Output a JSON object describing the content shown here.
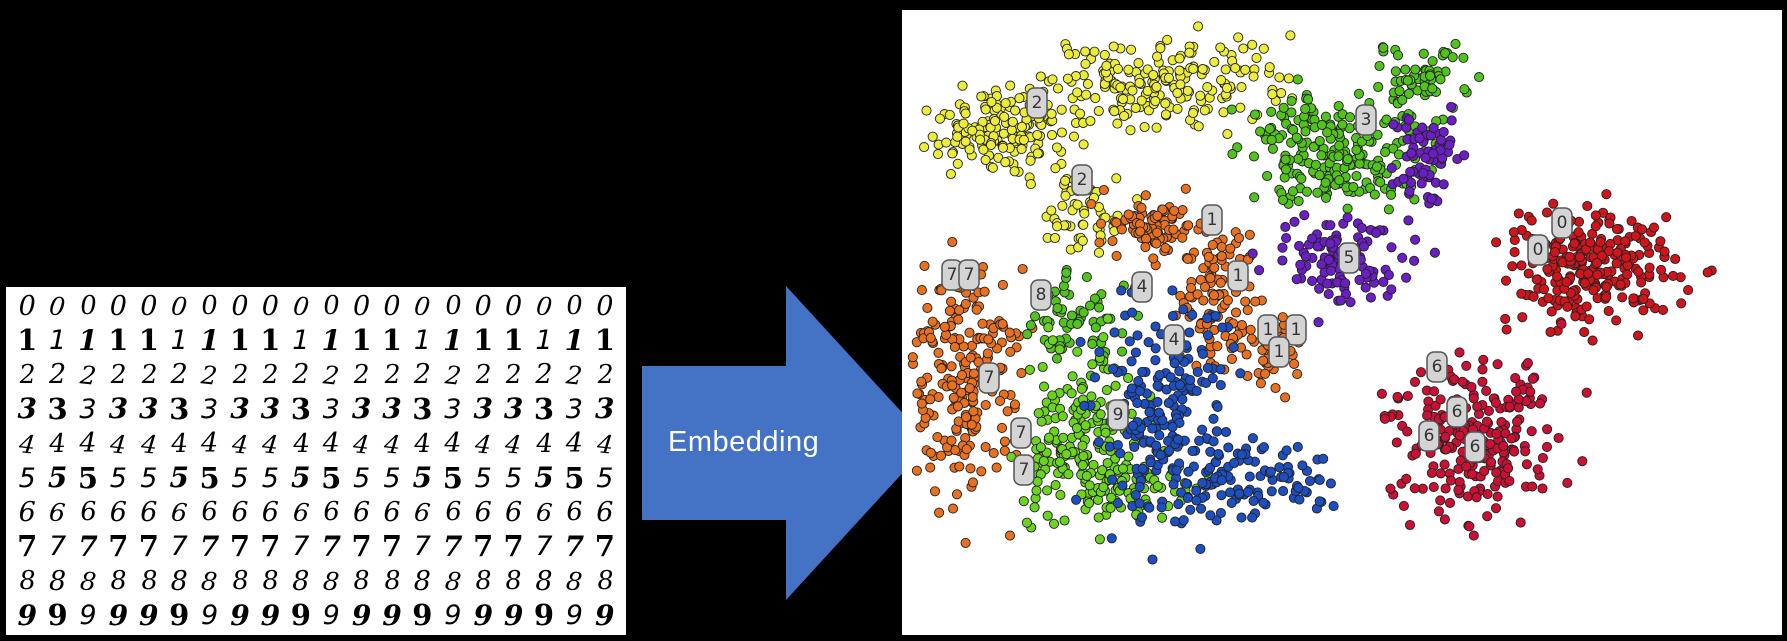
{
  "digit_grid": {
    "rows": [
      "0",
      "1",
      "2",
      "3",
      "4",
      "5",
      "6",
      "7",
      "8",
      "9"
    ],
    "columns_per_row": 20
  },
  "arrow": {
    "label": "Embedding",
    "color": "#4472c4"
  },
  "embedding": {
    "cluster_colors": {
      "0": "#d0141c",
      "1": "#e8701e",
      "2": "#ecec3a",
      "3": "#52c21c",
      "4": "#1e4fc0",
      "5": "#6a1ec4",
      "6": "#cc1034",
      "7": "#e8701e",
      "8": "#52c21c",
      "9": "#6cd41e"
    },
    "labels": [
      {
        "text": "2"
      },
      {
        "text": "2"
      },
      {
        "text": "3"
      },
      {
        "text": "1"
      },
      {
        "text": "1"
      },
      {
        "text": "1"
      },
      {
        "text": "1"
      },
      {
        "text": "1"
      },
      {
        "text": "0"
      },
      {
        "text": "0"
      },
      {
        "text": "5"
      },
      {
        "text": "7"
      },
      {
        "text": "7"
      },
      {
        "text": "8"
      },
      {
        "text": "4"
      },
      {
        "text": "4"
      },
      {
        "text": "7"
      },
      {
        "text": "9"
      },
      {
        "text": "7"
      },
      {
        "text": "7"
      },
      {
        "text": "6"
      },
      {
        "text": "6"
      },
      {
        "text": "6"
      },
      {
        "text": "6"
      }
    ]
  }
}
